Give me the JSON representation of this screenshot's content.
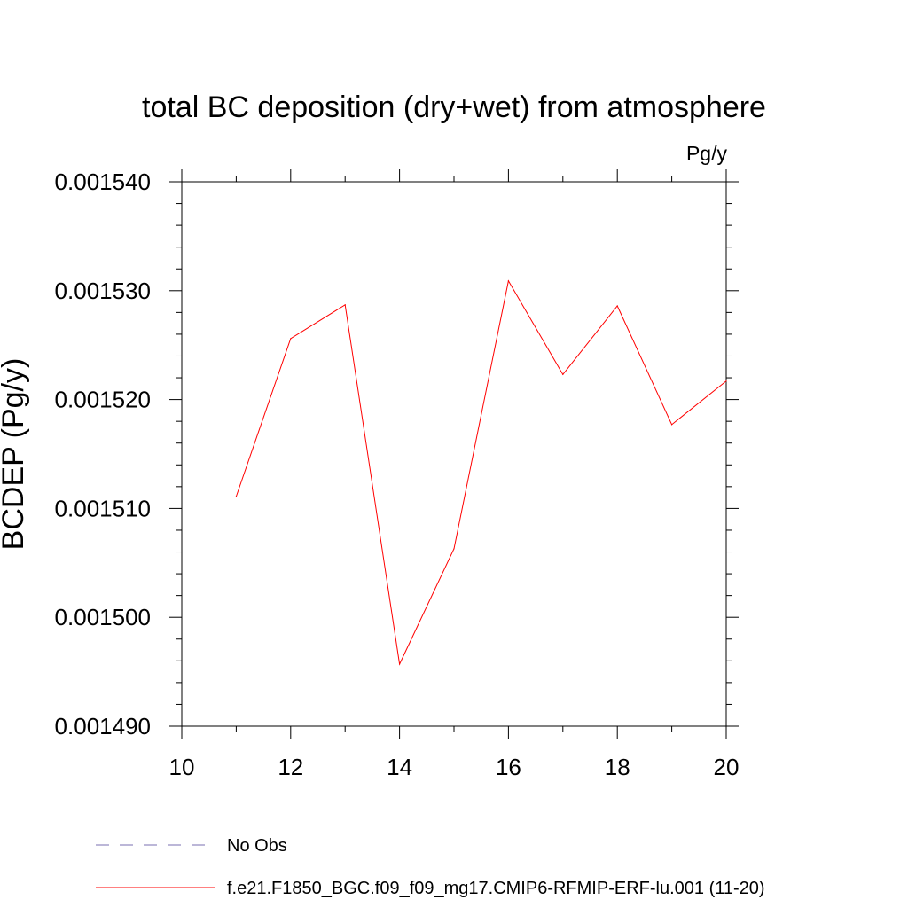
{
  "chart_data": {
    "type": "line",
    "title": "total BC deposition (dry+wet) from atmosphere",
    "units_label": "Pg/y",
    "ylabel": "BCDEP  (Pg/y)",
    "xlabel": "",
    "xlim": [
      10,
      20
    ],
    "ylim": [
      0.00149,
      0.00154
    ],
    "xticks": [
      "10",
      "12",
      "14",
      "16",
      "18",
      "20"
    ],
    "yticks": [
      "0.001490",
      "0.001500",
      "0.001510",
      "0.001520",
      "0.001530",
      "0.001540"
    ],
    "x": [
      11,
      12,
      13,
      14,
      15,
      16,
      17,
      18,
      19,
      20
    ],
    "series": [
      {
        "name": "f.e21.F1850_BGC.f09_f09_mg17.CMIP6-RFMIP-ERF-lu.001 (11-20)",
        "color": "#ff0000",
        "values": [
          0.0015111,
          0.0015256,
          0.0015287,
          0.0014957,
          0.0015063,
          0.0015309,
          0.0015223,
          0.0015286,
          0.0015177,
          0.0015217
        ]
      }
    ],
    "legend": {
      "placement": "bottom-left",
      "entries": [
        {
          "label": "No Obs",
          "color": "#7a6fb0",
          "style": "dashed"
        },
        {
          "label": "f.e21.F1850_BGC.f09_f09_mg17.CMIP6-RFMIP-ERF-lu.001 (11-20)",
          "color": "#ff0000",
          "style": "solid"
        }
      ]
    },
    "grid": false
  }
}
